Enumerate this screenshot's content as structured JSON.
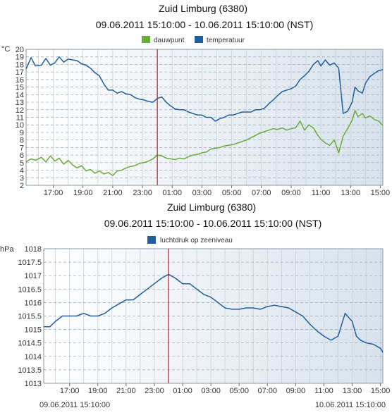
{
  "chart_data": [
    {
      "type": "line",
      "title": "Zuid Limburg (6380)",
      "subtitle": "09.06.2011 15:10:00 - 10.06.2011 15:10:00 (NST)",
      "unit_label": "°C",
      "ylim": [
        2,
        20
      ],
      "yticks": [
        "2",
        "3",
        "4",
        "5",
        "6",
        "7",
        "8",
        "9",
        "10",
        "11",
        "12",
        "13",
        "14",
        "15",
        "16",
        "17",
        "18",
        "19",
        "20"
      ],
      "xlim_hours": [
        15.17,
        39.17
      ],
      "xtick_hours": [
        17,
        19,
        21,
        23,
        25,
        27,
        29,
        31,
        33,
        35,
        37,
        39
      ],
      "xtick_labels": [
        "17:00",
        "19:00",
        "21:00",
        "23:00",
        "01:00",
        "03:00",
        "05:00",
        "07:00",
        "09:00",
        "11:00",
        "13:00",
        "15:00"
      ],
      "marker_hour": 24.0,
      "grid": true,
      "legend_position": "top-center",
      "series": [
        {
          "name": "dauwpunt",
          "color": "#6aaa3a",
          "x": [
            15.17,
            15.5,
            15.8,
            16.2,
            16.5,
            16.8,
            17.1,
            17.4,
            17.7,
            18.0,
            18.3,
            18.6,
            18.9,
            19.2,
            19.5,
            19.8,
            20.1,
            20.4,
            20.7,
            21.0,
            21.3,
            21.6,
            21.9,
            22.2,
            22.5,
            22.8,
            23.1,
            23.4,
            23.7,
            24.0,
            24.3,
            24.6,
            24.9,
            25.2,
            25.5,
            25.8,
            26.1,
            26.4,
            26.7,
            27.0,
            27.3,
            27.6,
            27.9,
            28.2,
            28.5,
            28.8,
            29.1,
            29.4,
            29.7,
            30.0,
            30.3,
            30.6,
            30.9,
            31.2,
            31.5,
            31.8,
            32.1,
            32.4,
            32.7,
            33.0,
            33.3,
            33.6,
            33.9,
            34.2,
            34.5,
            34.8,
            35.0,
            35.3,
            35.6,
            35.9,
            36.2,
            36.5,
            36.8,
            37.1,
            37.3,
            37.5,
            37.8,
            38.0,
            38.3,
            38.6,
            38.9,
            39.17
          ],
          "values": [
            5.1,
            5.5,
            5.3,
            5.7,
            5.1,
            5.9,
            5.2,
            5.6,
            4.8,
            5.3,
            4.7,
            4.3,
            4.6,
            3.9,
            4.1,
            3.6,
            3.9,
            3.5,
            3.7,
            3.3,
            3.9,
            4.0,
            4.3,
            4.5,
            4.6,
            4.9,
            5.0,
            5.2,
            5.5,
            6.0,
            5.9,
            5.6,
            5.5,
            5.4,
            5.6,
            5.5,
            5.8,
            6.0,
            6.1,
            6.3,
            6.4,
            6.8,
            6.9,
            7.0,
            7.2,
            7.3,
            7.4,
            7.6,
            7.8,
            8.0,
            8.3,
            8.6,
            8.9,
            9.1,
            9.3,
            9.5,
            9.4,
            9.6,
            9.3,
            9.5,
            9.6,
            10.5,
            9.3,
            10.0,
            9.6,
            8.6,
            8.1,
            7.6,
            7.3,
            8.0,
            6.3,
            8.5,
            9.5,
            10.6,
            11.9,
            11.1,
            11.5,
            10.9,
            11.2,
            10.7,
            10.5,
            9.9
          ]
        },
        {
          "name": "temperatuur",
          "color": "#1f5fa0",
          "x": [
            15.17,
            15.5,
            15.8,
            16.2,
            16.5,
            16.8,
            17.1,
            17.4,
            17.7,
            18.0,
            18.3,
            18.6,
            18.9,
            19.2,
            19.5,
            19.8,
            20.1,
            20.4,
            20.7,
            21.0,
            21.3,
            21.6,
            21.9,
            22.2,
            22.5,
            22.8,
            23.1,
            23.4,
            23.7,
            24.0,
            24.3,
            24.6,
            24.9,
            25.2,
            25.5,
            25.8,
            26.1,
            26.4,
            26.7,
            27.0,
            27.3,
            27.6,
            27.9,
            28.2,
            28.5,
            28.8,
            29.1,
            29.4,
            29.7,
            30.0,
            30.3,
            30.6,
            30.9,
            31.2,
            31.5,
            31.8,
            32.1,
            32.4,
            32.7,
            33.0,
            33.3,
            33.6,
            33.9,
            34.2,
            34.5,
            34.8,
            35.0,
            35.3,
            35.6,
            35.9,
            36.2,
            36.5,
            36.8,
            37.1,
            37.3,
            37.5,
            37.8,
            38.0,
            38.3,
            38.6,
            38.9,
            39.17
          ],
          "values": [
            17.4,
            18.9,
            17.8,
            17.9,
            18.8,
            17.9,
            18.2,
            19.0,
            18.3,
            18.7,
            18.6,
            18.5,
            18.1,
            17.9,
            17.5,
            16.9,
            16.5,
            15.4,
            14.6,
            14.6,
            14.2,
            14.4,
            14.1,
            14.0,
            13.6,
            13.4,
            13.3,
            13.1,
            13.0,
            13.5,
            13.7,
            13.0,
            12.5,
            12.1,
            12.0,
            12.0,
            11.7,
            11.5,
            11.3,
            11.3,
            11.0,
            11.0,
            10.5,
            10.8,
            11.0,
            11.3,
            11.3,
            11.5,
            11.7,
            11.7,
            11.7,
            12.0,
            12.0,
            12.2,
            12.8,
            13.3,
            13.9,
            14.4,
            14.6,
            14.8,
            15.1,
            16.0,
            16.5,
            17.1,
            18.0,
            18.5,
            17.8,
            18.6,
            17.9,
            18.2,
            17.5,
            11.5,
            11.8,
            13.0,
            15.0,
            14.5,
            14.2,
            15.5,
            16.4,
            16.8,
            17.2,
            17.3
          ]
        }
      ]
    },
    {
      "type": "line",
      "title": "Zuid Limburg (6380)",
      "subtitle": "09.06.2011 15:10:00 - 10.06.2011 15:10:00 (NST)",
      "unit_label": "hPa",
      "ylim": [
        1013,
        1018
      ],
      "yticks": [
        "1013",
        "1013.5",
        "1014",
        "1014.5",
        "1015",
        "1015.5",
        "1016",
        "1016.5",
        "1017",
        "1017.5",
        "1018"
      ],
      "xlim_hours": [
        15.17,
        39.17
      ],
      "xtick_hours": [
        17,
        19,
        21,
        23,
        25,
        27,
        29,
        31,
        33,
        35,
        37,
        39
      ],
      "xtick_labels": [
        "17:00",
        "19:00",
        "21:00",
        "23:00",
        "01:00",
        "03:00",
        "05:00",
        "07:00",
        "09:00",
        "11:00",
        "13:00",
        "15:00"
      ],
      "marker_hour": 24.0,
      "grid": true,
      "legend_position": "top-center",
      "start_label": "09.06.2011 15:10:00",
      "end_label": "10.06.2011 15:10:00",
      "series": [
        {
          "name": "luchtdruk op zeeniveau",
          "color": "#1f5fa0",
          "x": [
            15.17,
            15.6,
            16.0,
            16.5,
            17.0,
            17.5,
            18.0,
            18.5,
            19.0,
            19.5,
            20.0,
            20.5,
            21.0,
            21.5,
            22.0,
            22.5,
            23.0,
            23.5,
            24.0,
            24.5,
            25.0,
            25.5,
            26.0,
            26.5,
            27.0,
            27.5,
            28.0,
            28.5,
            29.0,
            29.5,
            30.0,
            30.5,
            31.0,
            31.5,
            32.0,
            32.5,
            33.0,
            33.5,
            34.0,
            34.5,
            35.0,
            35.5,
            36.0,
            36.5,
            37.0,
            37.3,
            37.6,
            38.0,
            38.5,
            39.0,
            39.17
          ],
          "values": [
            1015.1,
            1015.1,
            1015.3,
            1015.5,
            1015.5,
            1015.5,
            1015.6,
            1015.5,
            1015.5,
            1015.6,
            1015.8,
            1015.95,
            1016.1,
            1016.1,
            1016.3,
            1016.5,
            1016.7,
            1016.9,
            1017.05,
            1016.9,
            1016.7,
            1016.7,
            1016.5,
            1016.3,
            1016.2,
            1016.0,
            1015.8,
            1015.75,
            1015.75,
            1015.8,
            1015.8,
            1015.75,
            1015.85,
            1015.9,
            1015.85,
            1015.8,
            1015.65,
            1015.5,
            1015.2,
            1014.95,
            1014.75,
            1014.6,
            1014.75,
            1015.6,
            1015.3,
            1014.75,
            1014.6,
            1014.5,
            1014.45,
            1014.3,
            1014.15
          ]
        }
      ]
    }
  ]
}
